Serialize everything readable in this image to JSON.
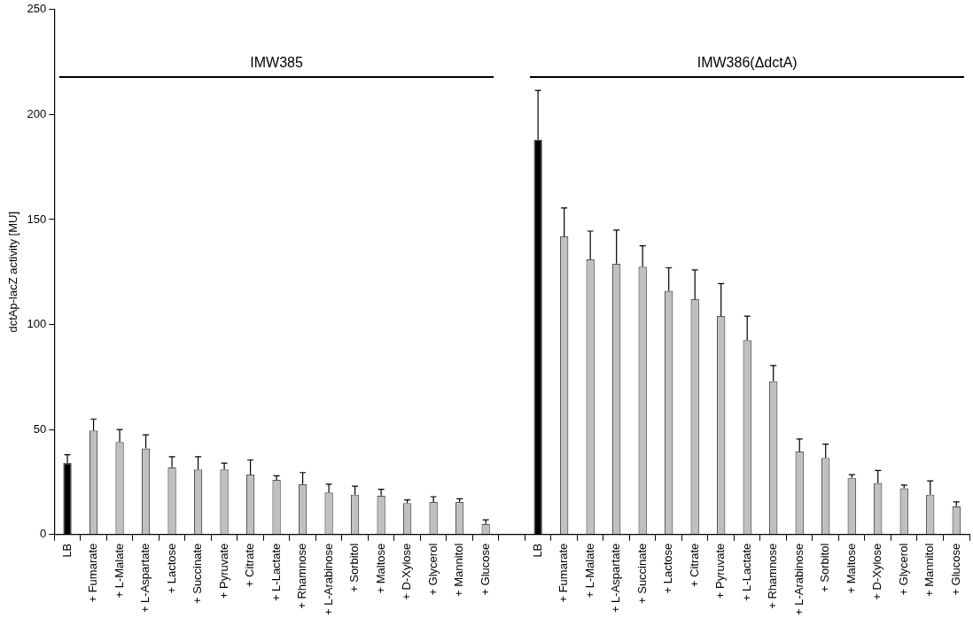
{
  "chart_data": {
    "type": "bar",
    "categories": [
      "LB",
      "+ Fumarate",
      "+ L-Malate",
      "+ L-Aspartate",
      "+ Lactose",
      "+ Succinate",
      "+ Pyruvate",
      "+ Citrate",
      "+ L-Lactate",
      "+ Rhamnose",
      "+ L-Arabinose",
      "+ Sorbitol",
      "+ Maltose",
      "+ D-Xylose",
      "+ Glycerol",
      "+ Mannitol",
      "+ Glucose",
      null,
      "LB",
      "+ Fumarate",
      "+ L-Malate",
      "+ L-Aspartate",
      "+ Succinate",
      "+ Lactose",
      "+ Citrate",
      "+ Pyruvate",
      "+ L-Lactate",
      "+ Rhamnose",
      "+ L-Arabinose",
      "+ Sorbitol",
      "+ Maltose",
      "+ D-Xylose",
      "+ Glycerol",
      "+ Mannitol",
      "+ Glucose"
    ],
    "values": [
      34,
      49.5,
      44,
      41,
      32,
      31,
      31,
      28.5,
      26,
      24,
      20,
      19,
      18.5,
      15,
      15.5,
      15.5,
      5,
      null,
      188,
      142,
      131,
      129,
      127.5,
      116,
      112,
      104,
      92.5,
      73,
      39.5,
      36.5,
      27,
      24.5,
      22,
      19,
      13.5
    ],
    "errors": [
      [
        34,
        38
      ],
      [
        49.5,
        55
      ],
      [
        44,
        50
      ],
      [
        41,
        47.5
      ],
      [
        32,
        37
      ],
      [
        31,
        37
      ],
      [
        31,
        34
      ],
      [
        28.5,
        35.5
      ],
      [
        26,
        28
      ],
      [
        24,
        29.5
      ],
      [
        20,
        24
      ],
      [
        19,
        23
      ],
      [
        18.5,
        21.5
      ],
      [
        15,
        16.5
      ],
      [
        15.5,
        18
      ],
      [
        15.5,
        17
      ],
      [
        5,
        7
      ],
      null,
      [
        188,
        211.5
      ],
      [
        142,
        155.5
      ],
      [
        131,
        144.5
      ],
      [
        129,
        145
      ],
      [
        127.5,
        137.5
      ],
      [
        116,
        127
      ],
      [
        112,
        126
      ],
      [
        104,
        119.5
      ],
      [
        92.5,
        104
      ],
      [
        73,
        80.5
      ],
      [
        39.5,
        45.5
      ],
      [
        36.5,
        43
      ],
      [
        27,
        28.5
      ],
      [
        24.5,
        30.5
      ],
      [
        22,
        23.5
      ],
      [
        19,
        25.5
      ],
      [
        13.5,
        15.5
      ]
    ],
    "colors": [
      "#000000",
      "#c0c0c0",
      "#c0c0c0",
      "#c0c0c0",
      "#c0c0c0",
      "#c0c0c0",
      "#c0c0c0",
      "#c0c0c0",
      "#c0c0c0",
      "#c0c0c0",
      "#c0c0c0",
      "#c0c0c0",
      "#c0c0c0",
      "#c0c0c0",
      "#c0c0c0",
      "#c0c0c0",
      "#c0c0c0",
      "#c0c0c0",
      "#000000",
      "#c0c0c0",
      "#c0c0c0",
      "#c0c0c0",
      "#c0c0c0",
      "#c0c0c0",
      "#c0c0c0",
      "#c0c0c0",
      "#c0c0c0",
      "#c0c0c0",
      "#c0c0c0",
      "#c0c0c0",
      "#c0c0c0",
      "#c0c0c0",
      "#c0c0c0",
      "#c0c0c0",
      "#c0c0c0"
    ],
    "ylabel": "dctAp-lacZ activity [MU]",
    "ylim": [
      0,
      250
    ],
    "yticks": [
      0,
      50,
      100,
      150,
      200,
      250
    ],
    "annotations": [
      "IMW385",
      "IMW386(ΔdctA)"
    ],
    "grid": false,
    "legend": false
  }
}
